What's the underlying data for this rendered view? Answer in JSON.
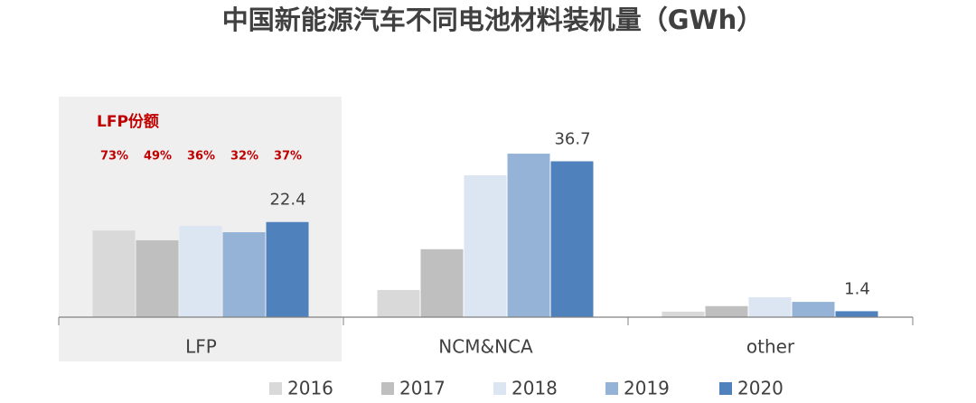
{
  "chart_data": {
    "type": "bar",
    "title": "中国新能源汽车不同电池材料装机量（GWh）",
    "categories": [
      "LFP",
      "NCM&NCA",
      "other"
    ],
    "series": [
      {
        "name": "2016",
        "color": "#d9d9d9",
        "values": [
          20.4,
          6.4,
          1.3
        ]
      },
      {
        "name": "2017",
        "color": "#bfbfbf",
        "values": [
          18.1,
          16.0,
          2.6
        ]
      },
      {
        "name": "2018",
        "color": "#dce6f2",
        "values": [
          21.5,
          33.4,
          4.7
        ]
      },
      {
        "name": "2019",
        "color": "#95b3d7",
        "values": [
          20.0,
          38.5,
          3.6
        ]
      },
      {
        "name": "2020",
        "color": "#4f81bd",
        "values": [
          22.4,
          36.7,
          1.4
        ],
        "show_labels": true
      }
    ],
    "ylim": [
      0,
      45
    ],
    "annotation": {
      "title": "LFP份额",
      "labels": [
        "73%",
        "49%",
        "36%",
        "32%",
        "37%"
      ],
      "color": "#c00000"
    },
    "legend": "bottom"
  }
}
